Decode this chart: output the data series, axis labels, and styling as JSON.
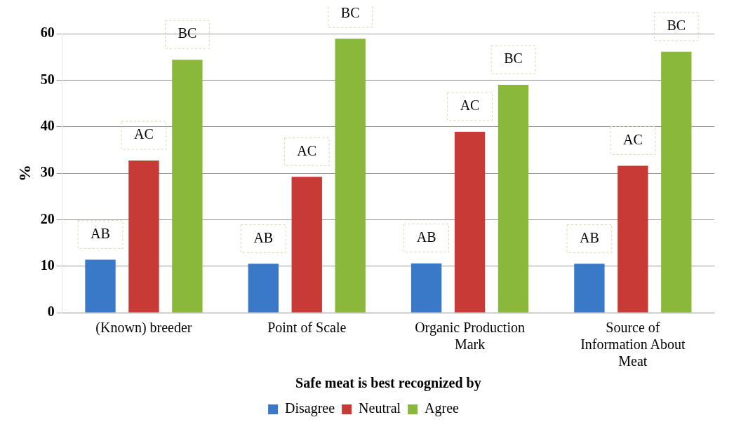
{
  "chart_data": {
    "type": "bar",
    "xlabel": "Safe meat is best recognized by",
    "ylabel": "%",
    "categories": [
      "(Known) breeder",
      "Point of Scale",
      "Organic Production Mark",
      "Source of Information About Meat"
    ],
    "series": [
      {
        "name": "Disagree",
        "color": "#3a78c8",
        "values": [
          11.4,
          10.5,
          10.6,
          10.5
        ],
        "value_labels": [
          "AB",
          "AB",
          "AB",
          "AB"
        ]
      },
      {
        "name": "Neutral",
        "color": "#c83a35",
        "values": [
          32.7,
          29.2,
          38.9,
          31.6
        ],
        "value_labels": [
          "AC",
          "AC",
          "AC",
          "AC"
        ]
      },
      {
        "name": "Agree",
        "color": "#8ab83a",
        "values": [
          54.4,
          58.9,
          49.0,
          56.1
        ],
        "value_labels": [
          "BC",
          "BC",
          "BC",
          "BC"
        ]
      }
    ],
    "ylim": [
      0,
      60
    ],
    "yticks": [
      0,
      10,
      20,
      30,
      40,
      50,
      60
    ],
    "grid": "y",
    "legend": "bottom"
  }
}
